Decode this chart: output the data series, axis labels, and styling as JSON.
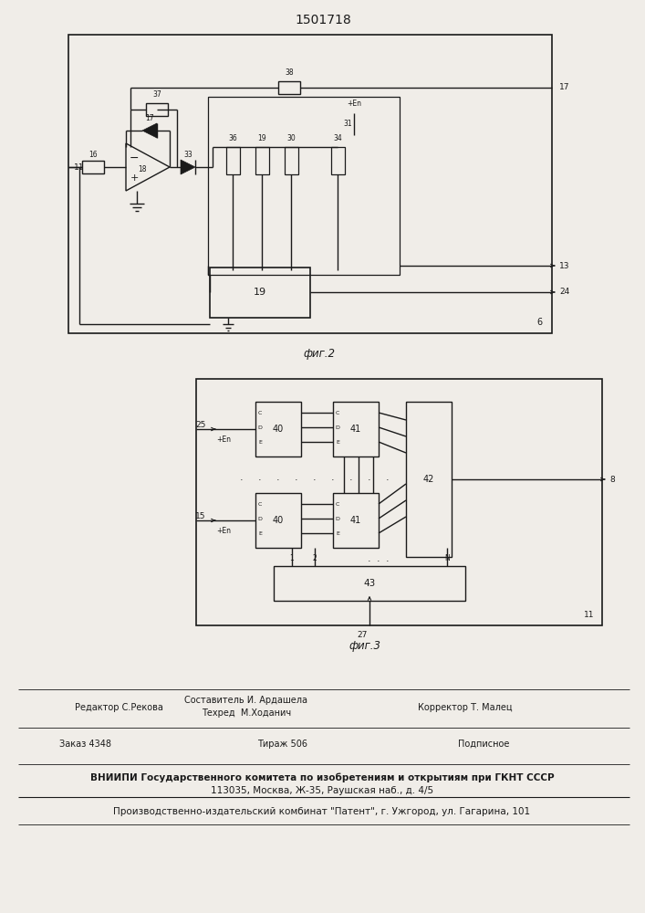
{
  "title": "1501718",
  "fig2_label": "фиг.2",
  "fig3_label": "фиг.3",
  "background_color": "#f0ede8",
  "line_color": "#1a1a1a",
  "footer": {
    "col1_line1": "Составитель И. Ардашела",
    "col1_line2": "Техред  М.Ходанич",
    "col2": "Редактор С.Рекова",
    "col3": "Корректор Т. Малец",
    "order": "Заказ 4348",
    "tirazh": "Тираж 506",
    "podpisnoe": "Подписное",
    "vniipи": "ВНИИПИ Государственного комитета по изобретениям и открытиям при ГКНТ СССР",
    "address": "113035, Москва, Ж-35, Раушская наб., д. 4/5",
    "patent": "Производственно-издательский комбинат \"Патент\", г. Ужгород, ул. Гагарина, 101"
  }
}
